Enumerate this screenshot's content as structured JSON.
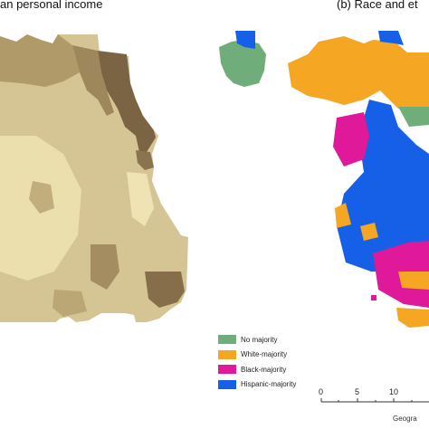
{
  "panels": {
    "a": {
      "title": "an personal income"
    },
    "b": {
      "title": "(b) Race and et"
    }
  },
  "legend": {
    "items": [
      {
        "label": "No majority",
        "color": "#6fae7a"
      },
      {
        "label": "White-majority",
        "color": "#f5a623"
      },
      {
        "label": "Black-majority",
        "color": "#e0189a"
      },
      {
        "label": "Hispanic-majority",
        "color": "#1560e6"
      }
    ]
  },
  "scale": {
    "ticks": [
      "0",
      "5",
      "10"
    ],
    "footer": "Geogra"
  },
  "colors": {
    "income_base": "#d6c594",
    "income_light": "#efe3b4",
    "income_mid": "#b09a6a",
    "income_dark": "#7b6443"
  }
}
